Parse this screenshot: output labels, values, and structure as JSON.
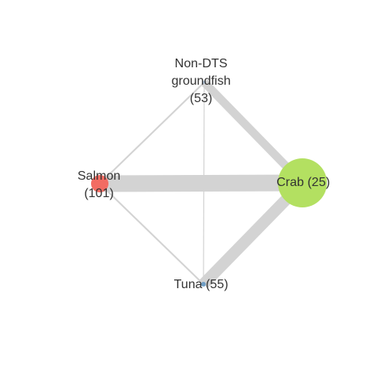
{
  "nodes": [
    {
      "id": "groundfish",
      "label_lines": [
        "Non-DTS",
        "groundfish",
        "(53)"
      ],
      "color": "#b3c5d9",
      "weight": 1
    },
    {
      "id": "crab",
      "label_lines": [
        "Crab (25)"
      ],
      "color": "#b3e061",
      "weight": 10
    },
    {
      "id": "tuna",
      "label_lines": [
        "Tuna (55)"
      ],
      "color": "#6f9ec4",
      "weight": 1
    },
    {
      "id": "salmon",
      "label_lines": [
        "Salmon",
        "(101)"
      ],
      "color": "#f26c63",
      "weight": 3
    }
  ],
  "edges": [
    {
      "from": "salmon",
      "to": "crab",
      "weight": 10
    },
    {
      "from": "tuna",
      "to": "crab",
      "weight": 7
    },
    {
      "from": "groundfish",
      "to": "crab",
      "weight": 5
    },
    {
      "from": "salmon",
      "to": "groundfish",
      "weight": 1
    },
    {
      "from": "salmon",
      "to": "tuna",
      "weight": 1
    },
    {
      "from": "groundfish",
      "to": "tuna",
      "weight": 0.5
    }
  ],
  "edge_color": "#d3d3d3"
}
